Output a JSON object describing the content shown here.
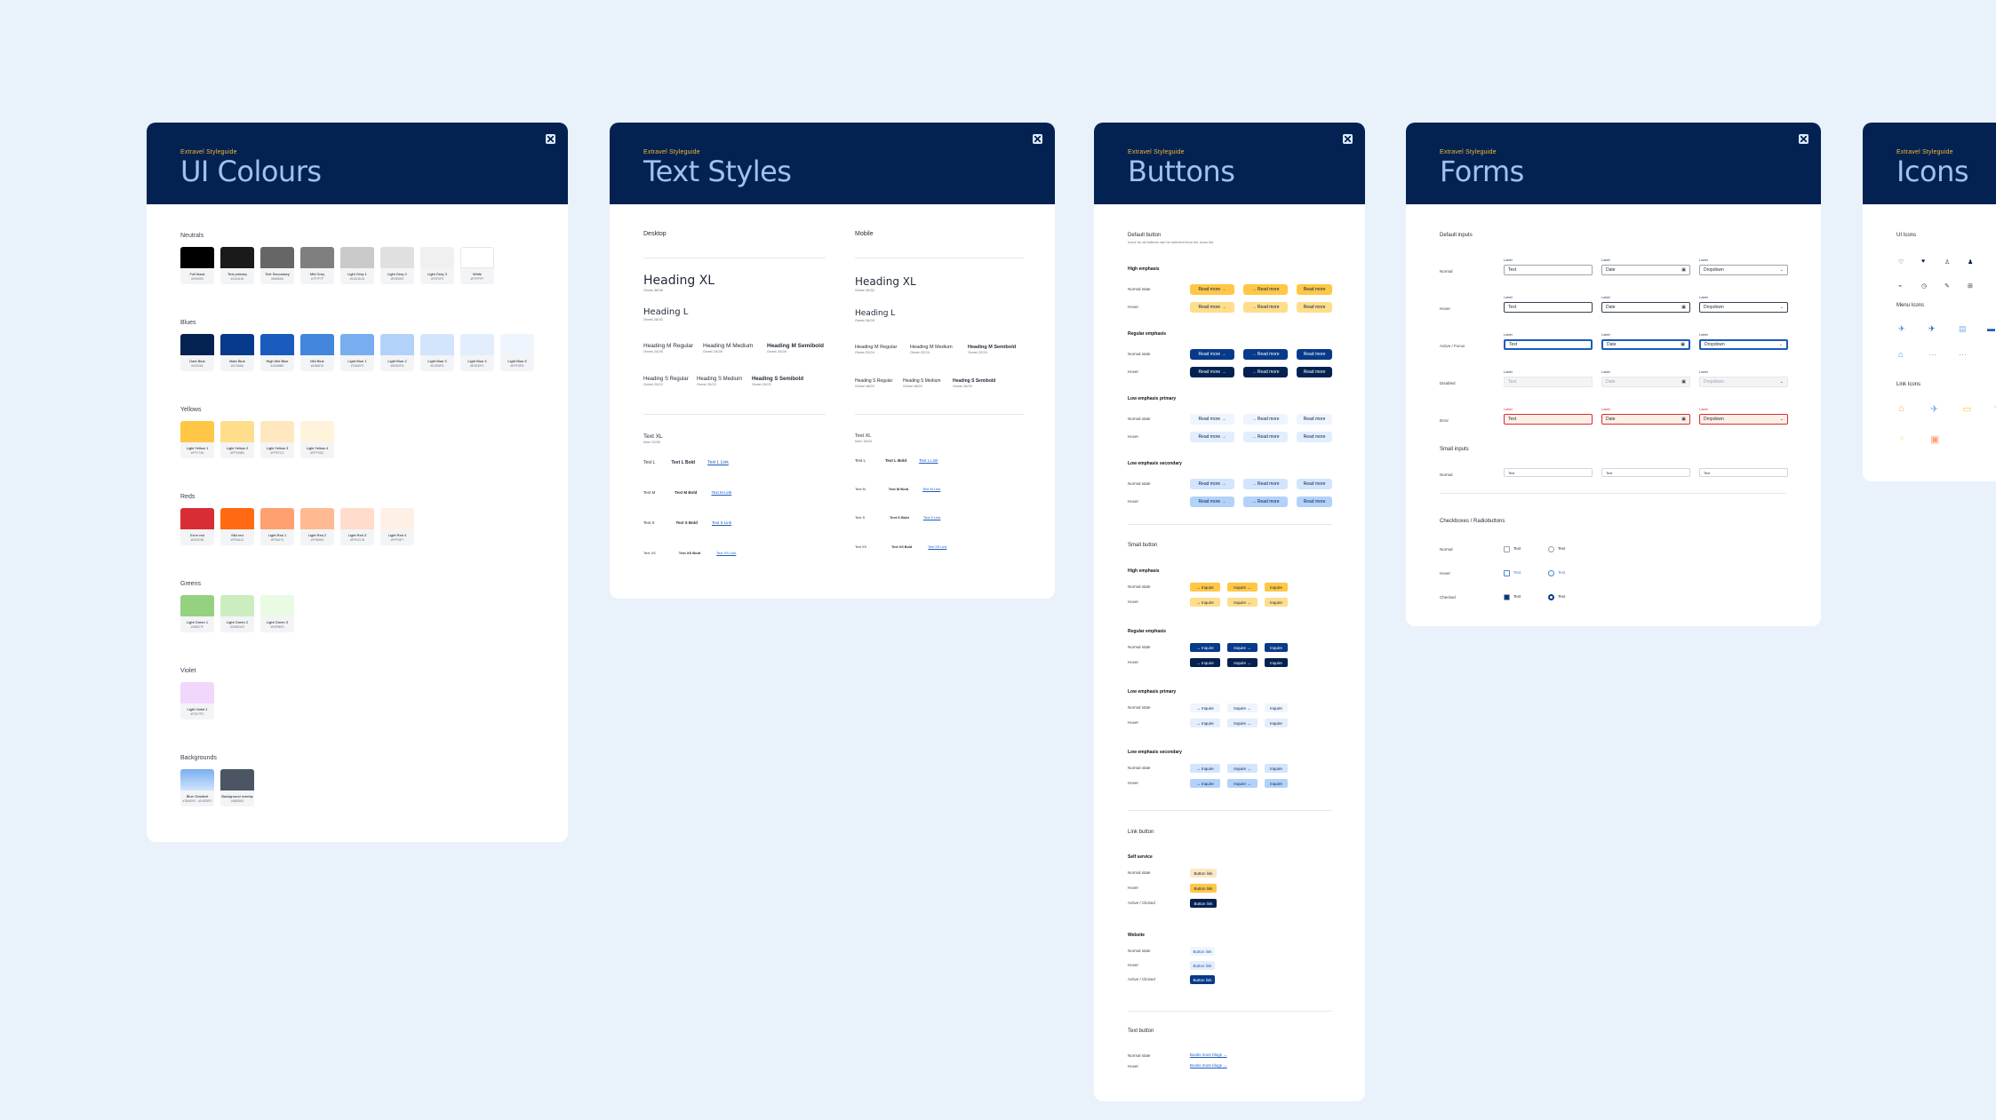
{
  "kicker": "Extravel Styleguide",
  "colours": {
    "title": "UI Colours",
    "groups": [
      {
        "label": "Neutrals",
        "swatches": [
          {
            "name": "Full black",
            "hex": "#000000"
          },
          {
            "name": "Text primary",
            "hex": "#1A1A1A"
          },
          {
            "name": "Text Secondary",
            "hex": "#666666"
          },
          {
            "name": "Mid Grey",
            "hex": "#7F7F7F"
          },
          {
            "name": "Light Grey 1",
            "hex": "#CACACA"
          },
          {
            "name": "Light Grey 2",
            "hex": "#E0E0E0"
          },
          {
            "name": "Light Grey 3",
            "hex": "#F0F0F0"
          },
          {
            "name": "White",
            "hex": "#FFFFFF"
          }
        ]
      },
      {
        "label": "Blues",
        "swatches": [
          {
            "name": "Dark Blue",
            "hex": "#032251"
          },
          {
            "name": "Main Blue",
            "hex": "#073A8A"
          },
          {
            "name": "High Mid Blue",
            "hex": "#1A5BBE"
          },
          {
            "name": "Mid Blue",
            "hex": "#4386DD"
          },
          {
            "name": "Light Blue 1",
            "hex": "#78AEF0"
          },
          {
            "name": "Light Blue 2",
            "hex": "#B3D2FA"
          },
          {
            "name": "Light Blue 3",
            "hex": "#D3E5FD"
          },
          {
            "name": "Light Blue 4",
            "hex": "#E3EEFC"
          },
          {
            "name": "Light Blue 5",
            "hex": "#EFF5FD"
          }
        ]
      },
      {
        "label": "Yellows",
        "swatches": [
          {
            "name": "Light Yellow 1",
            "hex": "#FFC745"
          },
          {
            "name": "Light Yellow 2",
            "hex": "#FFDE8B"
          },
          {
            "name": "Light Yellow 3",
            "hex": "#FFE7C0"
          },
          {
            "name": "Light Yellow 4",
            "hex": "#FFF3DC"
          }
        ]
      },
      {
        "label": "Reds",
        "swatches": [
          {
            "name": "Error red",
            "hex": "#D92D35"
          },
          {
            "name": "Mid red",
            "hex": "#FF6A13"
          },
          {
            "name": "Light Red 1",
            "hex": "#FFA070"
          },
          {
            "name": "Light Red 2",
            "hex": "#FFB993"
          },
          {
            "name": "Light Red 3",
            "hex": "#FFDCCB"
          },
          {
            "name": "Light Red 4",
            "hex": "#FFF0E7"
          }
        ]
      },
      {
        "label": "Greens",
        "swatches": [
          {
            "name": "Light Green 1",
            "hex": "#95D27F"
          },
          {
            "name": "Light Green 2",
            "hex": "#CBEDC0"
          },
          {
            "name": "Light Green 3",
            "hex": "#E9FBE3"
          }
        ]
      },
      {
        "label": "Violet",
        "swatches": [
          {
            "name": "Light Violet 1",
            "hex": "#F2D7FC"
          }
        ]
      },
      {
        "label": "Backgrounds",
        "swatches": [
          {
            "name": "Blue Gradient",
            "hex": "#78AEF0 - #D3E5FD"
          },
          {
            "name": "Background overlay",
            "hex": "#4B5563"
          }
        ]
      }
    ]
  },
  "text_styles": {
    "title": "Text Styles",
    "desktop_label": "Desktop",
    "mobile_label": "Mobile",
    "desktop": {
      "xl": "Heading XL",
      "xl_s": "Onest 36/38",
      "l": "Heading L",
      "l_s": "Onest 28/30",
      "m": [
        "Heading M Regular",
        "Heading M Medium",
        "Heading M Semibold"
      ],
      "m_s": [
        "Onest 24/26",
        "Onest 24/26",
        "Onest 24/26"
      ],
      "s": [
        "Heading S Regular",
        "Heading S Medium",
        "Heading S Semibold"
      ],
      "s_s": [
        "Onest 20/22",
        "Onest 20/22",
        "Onest 20/22"
      ],
      "txl": "Text XL",
      "txl_s": "Inter 22/30",
      "tl": [
        "Text L",
        "Text L Bold",
        "Text L Link"
      ],
      "tm": [
        "Text M",
        "Text M Bold",
        "Text M Link"
      ],
      "ts": [
        "Text S",
        "Text S Bold",
        "Text S Link"
      ],
      "txs": [
        "Text XS",
        "Text XS Bold",
        "Text XS Link"
      ]
    },
    "mobile": {
      "xl": "Heading XL",
      "xl_s": "Onest 30/32",
      "l": "Heading L",
      "l_s": "Onest 26/28",
      "m": [
        "Heading M Regular",
        "Heading M Medium",
        "Heading M Semibold"
      ],
      "m_s": [
        "Onest 22/24",
        "Onest 22/24",
        "Onest 22/24"
      ],
      "s": [
        "Heading S Regular",
        "Heading S Medium",
        "Heading S Semibold"
      ],
      "s_s": [
        "Onest 18/20",
        "Onest 18/20",
        "Onest 18/20"
      ],
      "txl": "Text XL",
      "txl_s": "Inter 18/24",
      "tl": [
        "Text L",
        "Text L Bold",
        "Text L Link"
      ],
      "tm": [
        "Text M",
        "Text M Bold",
        "Text M Link"
      ],
      "ts": [
        "Text S",
        "Text S Bold",
        "Text S Link"
      ],
      "txs": [
        "Text XS",
        "Text XS Bold",
        "Text XS Link"
      ]
    }
  },
  "buttons": {
    "title": "Buttons",
    "default_label": "Default button",
    "default_note": "Icons for all buttons can be selected from the icons list",
    "high": "High emphasis",
    "regular": "Regular emphasis",
    "low_primary": "Low emphasis primary",
    "low_secondary": "Low emphasis secondary",
    "normal_state": "Normal state",
    "hover": "Hover",
    "read_more": "Read more",
    "small_label": "Small button",
    "inquire": "Inquire",
    "link_label": "Link button",
    "self_service": "Self service",
    "website": "Website",
    "active": "Active / Clicked",
    "link_text": "Button link",
    "text_button_label": "Text button",
    "text_link": "Books more blogs"
  },
  "forms": {
    "title": "Forms",
    "default_inputs": "Default inputs",
    "states": [
      "Normal",
      "Hover",
      "Active / Focus",
      "Disabled",
      "Error"
    ],
    "label": "Label",
    "text": "Text",
    "date": "Date",
    "dropdown": "Dropdown",
    "small_inputs": "Small inputs",
    "small_normal": "Normal",
    "checkboxes_label": "Checkboxes / Radiobuttons",
    "check_states": [
      "Normal",
      "Hover",
      "Checked"
    ]
  },
  "icons": {
    "title": "Icons",
    "ui_icons": "UI Icons",
    "menu_icons": "Menu Icons",
    "link_icons": "Link Icons"
  },
  "colors": {
    "navy": "#032251",
    "yellow": "#FFC745",
    "blue_light": "#D3E5FD",
    "bg": "#E9F1FB"
  }
}
